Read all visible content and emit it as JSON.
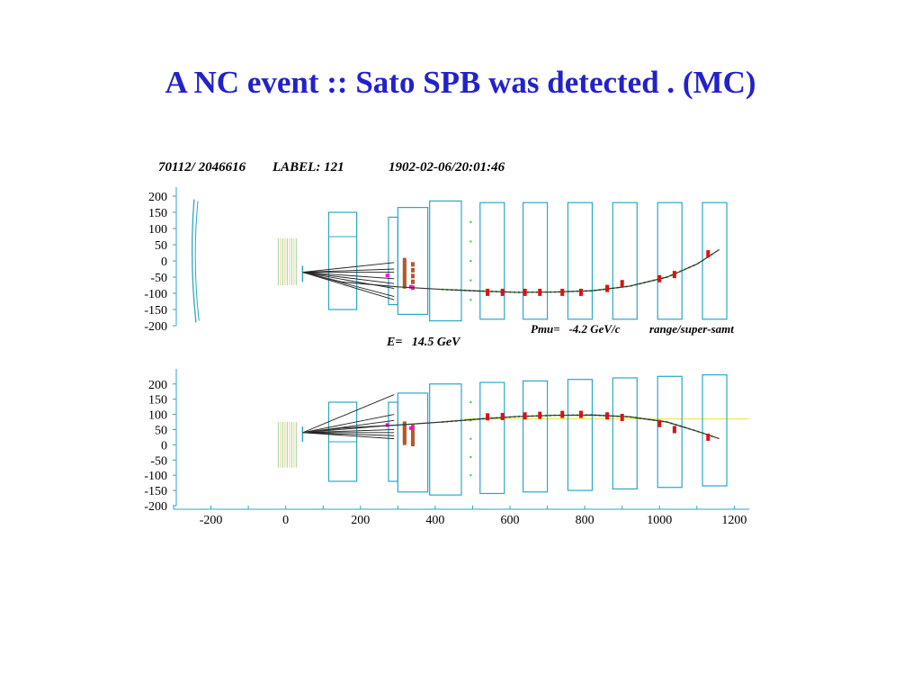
{
  "slide": {
    "title": "A NC event :: Sato SPB was detected . (MC)"
  },
  "header": {
    "event_id": "70112/ 2046616",
    "label": "LABEL: 121",
    "timestamp": "1902-02-06/20:01:46"
  },
  "readout": {
    "energy": "E=   14.5 GeV",
    "momentum": "Pmu=   -4.2 GeV/c",
    "method": "range/super-samt"
  },
  "colors": {
    "title": "#2222cc",
    "detector": "#2aa7c9",
    "track": "#333333",
    "hit": "#dd1111",
    "hit_inner": "#b05a2a",
    "magenta_hit": "#ff00ff",
    "green_hit": "#33cc33",
    "beam_line": "#f0e040"
  },
  "chart_data": [
    {
      "type": "scatter",
      "view": "top",
      "xlim": [
        -300,
        1240
      ],
      "ylim": [
        -200,
        200
      ],
      "yticks": [
        200,
        150,
        100,
        50,
        0,
        -50,
        -100,
        -150,
        -200
      ],
      "detector_modules": [
        {
          "x0": 115,
          "x1": 190,
          "y0": -150,
          "y1": 150
        },
        {
          "x0": 275,
          "x1": 300,
          "y0": -135,
          "y1": 135
        },
        {
          "x0": 300,
          "x1": 380,
          "y0": -165,
          "y1": 165
        },
        {
          "x0": 385,
          "x1": 470,
          "y0": -185,
          "y1": 185
        },
        {
          "x0": 520,
          "x1": 585,
          "y0": -180,
          "y1": 180
        },
        {
          "x0": 635,
          "x1": 700,
          "y0": -180,
          "y1": 180
        },
        {
          "x0": 755,
          "x1": 820,
          "y0": -180,
          "y1": 180
        },
        {
          "x0": 875,
          "x1": 940,
          "y0": -180,
          "y1": 180
        },
        {
          "x0": 995,
          "x1": 1060,
          "y0": -180,
          "y1": 180
        },
        {
          "x0": 1115,
          "x1": 1180,
          "y0": -180,
          "y1": 180
        }
      ],
      "muon_track": {
        "x": [
          45,
          150,
          300,
          420,
          520,
          620,
          720,
          820,
          920,
          1020,
          1100,
          1160
        ],
        "y": [
          -35,
          -65,
          -80,
          -88,
          -93,
          -97,
          -96,
          -92,
          -78,
          -50,
          -10,
          35
        ]
      },
      "muon_hits": {
        "x": [
          540,
          580,
          640,
          680,
          740,
          790,
          860,
          900,
          1000,
          1040,
          1130
        ],
        "y": [
          -97,
          -97,
          -97,
          -97,
          -97,
          -97,
          -85,
          -70,
          -55,
          -42,
          22
        ]
      },
      "vertex": {
        "x": 45,
        "y": -35
      },
      "secondary_tracks_end_y": [
        -5,
        -25,
        -35,
        -55,
        -70,
        -85,
        -110,
        -120
      ]
    },
    {
      "type": "scatter",
      "view": "side",
      "xlim": [
        -300,
        1240
      ],
      "ylim": [
        -200,
        220
      ],
      "xticks": [
        -200,
        0,
        200,
        400,
        600,
        800,
        1000,
        1200
      ],
      "yticks": [
        200,
        150,
        100,
        50,
        0,
        -50,
        -100,
        -150,
        -200
      ],
      "beam_line_y": 85,
      "detector_modules": [
        {
          "x0": 115,
          "x1": 190,
          "y0": -120,
          "y1": 140
        },
        {
          "x0": 275,
          "x1": 300,
          "y0": -120,
          "y1": 140
        },
        {
          "x0": 300,
          "x1": 380,
          "y0": -155,
          "y1": 170
        },
        {
          "x0": 385,
          "x1": 470,
          "y0": -165,
          "y1": 200
        },
        {
          "x0": 520,
          "x1": 585,
          "y0": -160,
          "y1": 205
        },
        {
          "x0": 635,
          "x1": 700,
          "y0": -155,
          "y1": 210
        },
        {
          "x0": 755,
          "x1": 820,
          "y0": -150,
          "y1": 215
        },
        {
          "x0": 875,
          "x1": 940,
          "y0": -145,
          "y1": 220
        },
        {
          "x0": 995,
          "x1": 1060,
          "y0": -140,
          "y1": 225
        },
        {
          "x0": 1115,
          "x1": 1180,
          "y0": -135,
          "y1": 230
        }
      ],
      "muon_track": {
        "x": [
          45,
          150,
          300,
          420,
          520,
          620,
          720,
          820,
          920,
          1020,
          1100,
          1160
        ],
        "y": [
          40,
          55,
          65,
          75,
          85,
          93,
          97,
          98,
          92,
          75,
          45,
          20
        ]
      },
      "muon_hits": {
        "x": [
          540,
          580,
          640,
          680,
          740,
          790,
          860,
          900,
          1000,
          1040,
          1130
        ],
        "y": [
          92,
          93,
          95,
          97,
          100,
          100,
          95,
          90,
          70,
          50,
          25
        ]
      },
      "vertex": {
        "x": 45,
        "y": 40
      },
      "secondary_tracks_end_y": [
        165,
        100,
        80,
        65,
        50,
        40,
        30,
        20
      ]
    }
  ]
}
